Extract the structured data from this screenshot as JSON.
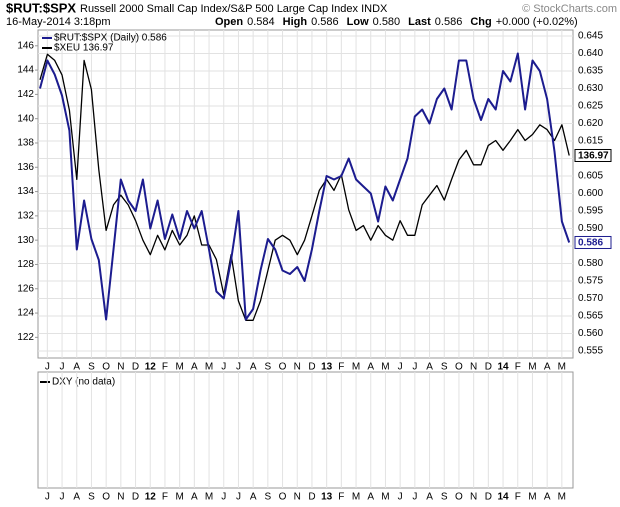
{
  "chart_data": {
    "type": "line",
    "title": "$RUT:$SPX",
    "subtitle": "Russell 2000 Small Cap Index/S&P 500 Large Cap Index INDX",
    "date": "16-May-2014 3:18pm",
    "quote": [
      {
        "label": "Open",
        "value": "0.584"
      },
      {
        "label": "High",
        "value": "0.586"
      },
      {
        "label": "Low",
        "value": "0.580"
      },
      {
        "label": "Last",
        "value": "0.586"
      },
      {
        "label": "Chg",
        "value": "+0.000 (+0.02%)"
      }
    ],
    "credit": "© StockCharts.com",
    "lower_panel_label": "DXY (no data)",
    "categories": [
      null,
      "J",
      null,
      "J",
      null,
      "A",
      null,
      "S",
      null,
      "O",
      null,
      "N",
      null,
      "D",
      null,
      "12",
      null,
      "F",
      null,
      "M",
      null,
      "A",
      null,
      "M",
      null,
      "J",
      null,
      "J",
      null,
      "A",
      null,
      "S",
      null,
      "O",
      null,
      "N",
      null,
      "D",
      null,
      "13",
      null,
      "F",
      null,
      "M",
      null,
      "A",
      null,
      "M",
      null,
      "J",
      null,
      "J",
      null,
      "A",
      null,
      "S",
      null,
      "O",
      null,
      "N",
      null,
      "D",
      null,
      "14",
      null,
      "F",
      null,
      "M",
      null,
      "A",
      null,
      "M",
      null
    ],
    "series": [
      {
        "name": "$XEU 136.97",
        "color": "#000000",
        "axis": "y",
        "values": [
          143.2,
          145.3,
          144.8,
          143.6,
          140.7,
          135,
          144.8,
          142.4,
          135.8,
          130.8,
          132.9,
          133.7,
          132.9,
          131.6,
          130,
          128.8,
          130.4,
          129.2,
          130.8,
          129.6,
          130.4,
          132,
          129.6,
          129.6,
          128.4,
          125.5,
          128.8,
          125,
          123.4,
          123.4,
          125,
          127.5,
          130,
          130.4,
          130,
          128.8,
          130,
          132,
          134.1,
          135,
          134.1,
          135.4,
          132.5,
          130.8,
          131.2,
          130,
          131.2,
          130.4,
          130,
          131.6,
          130.4,
          130.4,
          132.9,
          133.7,
          134.5,
          133.3,
          135,
          136.6,
          137.4,
          136.2,
          136.2,
          137.8,
          138.2,
          137.4,
          138.2,
          139.1,
          138.2,
          138.7,
          139.5,
          139.1,
          138.2,
          139.5,
          136.97
        ]
      },
      {
        "name": "$RUT:$SPX (Daily) 0.586",
        "color": "#1c1c8f",
        "axis": "y2",
        "values": [
          0.63,
          0.638,
          0.634,
          0.628,
          0.618,
          0.584,
          0.598,
          0.587,
          0.581,
          0.564,
          0.584,
          0.604,
          0.598,
          0.595,
          0.604,
          0.59,
          0.598,
          0.587,
          0.594,
          0.587,
          0.595,
          0.59,
          0.595,
          0.584,
          0.572,
          0.57,
          0.581,
          0.595,
          0.564,
          0.567,
          0.578,
          0.587,
          0.584,
          0.578,
          0.577,
          0.579,
          0.575,
          0.584,
          0.595,
          0.605,
          0.604,
          0.605,
          0.61,
          0.604,
          0.602,
          0.6,
          0.592,
          0.602,
          0.598,
          0.604,
          0.61,
          0.622,
          0.624,
          0.62,
          0.627,
          0.63,
          0.624,
          0.638,
          0.638,
          0.627,
          0.621,
          0.627,
          0.624,
          0.635,
          0.632,
          0.64,
          0.624,
          0.638,
          0.635,
          0.627,
          0.612,
          0.592,
          0.586
        ]
      }
    ],
    "ylim": [
      120.3,
      147.3
    ],
    "yticks": [
      122,
      124,
      126,
      128,
      130,
      132,
      134,
      136,
      138,
      140,
      142,
      144,
      146
    ],
    "y2lim": [
      0.553,
      0.6467
    ],
    "y2ticks": [
      0.555,
      {
        "value": 0.56,
        "label": "0.560"
      },
      0.565,
      {
        "value": 0.57,
        "label": "0.570"
      },
      0.575,
      {
        "value": 0.58,
        "label": "0.580"
      },
      0.585,
      {
        "value": 0.59,
        "label": "0.590"
      },
      0.595,
      {
        "value": 0.6,
        "label": "0.600"
      },
      0.605,
      {
        "value": 0.61,
        "label": "0.610"
      },
      0.615,
      {
        "value": 0.62,
        "label": "0.620"
      },
      0.625,
      {
        "value": 0.63,
        "label": "0.630"
      },
      0.635,
      {
        "value": 0.64,
        "label": "0.640"
      },
      0.645
    ],
    "grid": true
  }
}
